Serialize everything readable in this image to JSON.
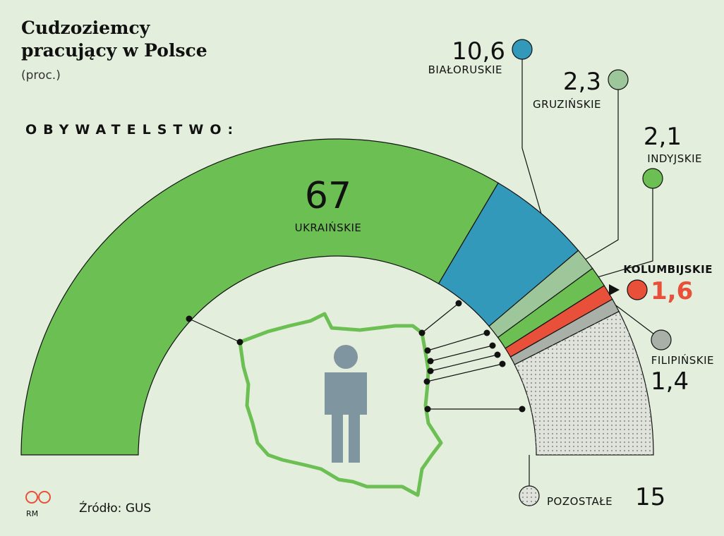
{
  "chart_data": {
    "type": "pie",
    "title": [
      "Cudzoziemcy",
      "pracujący w Polsce"
    ],
    "subtitle": "(proc.)",
    "annotation": "OBYWATELSTWO:",
    "source": "Źródło: GUS",
    "credit": "RM",
    "categories": [
      "UKRAIŃSKIE",
      "BIAŁORUSKIE",
      "GRUZIŃSKIE",
      "INDYJSKIE",
      "KOLUMBIJSKIE",
      "FILIPIŃSKIE",
      "POZOSTAŁE"
    ],
    "values": [
      67,
      10.6,
      2.3,
      2.1,
      1.6,
      1.4,
      15
    ],
    "value_labels": [
      "67",
      "10,6",
      "2,3",
      "2,1",
      "1,6",
      "1,4",
      "15"
    ],
    "colors": [
      "#6cbf52",
      "#3399bb",
      "#9dc79a",
      "#6cbf52",
      "#e8503a",
      "#a9b0a8",
      "#dfe3dc"
    ]
  }
}
